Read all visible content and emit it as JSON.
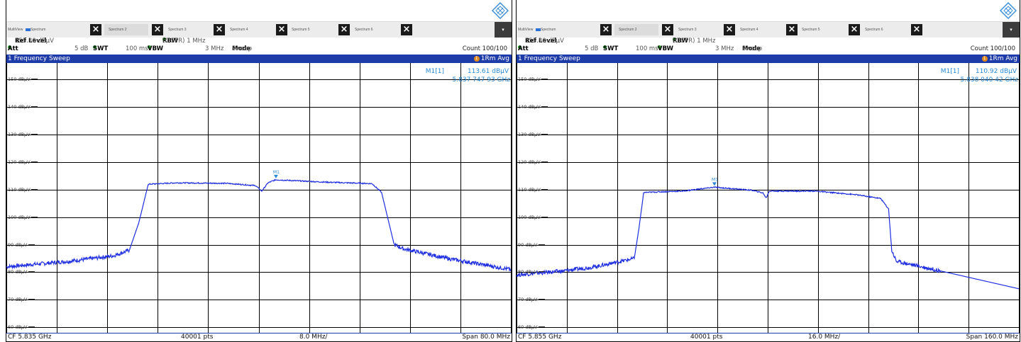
{
  "panels": [
    {
      "tabs": [
        "MultiView",
        "Spectrum",
        "Spectrum 2",
        "Spectrum 3",
        "Spectrum 4",
        "Spectrum 5",
        "Spectrum 6"
      ],
      "ref_level_label": "Ref Level",
      "ref_level_value": "155.30 dBµV",
      "rbw_label": "RBW",
      "rbw_value": "(CISPR) 1 MHz",
      "att_label": "Att",
      "att_value": "5 dB",
      "swt_label": "SWT",
      "swt_value": "100 ms",
      "vbw_label": "VBW",
      "vbw_value": "3 MHz",
      "mode_label": "Mode",
      "mode_value": "Sweep",
      "count": "Count 100/100",
      "sweep_title": "1 Frequency Sweep",
      "trace_mode_num": "1",
      "trace_mode": "1Rm Avg",
      "marker_name": "M1[1]",
      "marker_level": "113.61 dBµV",
      "marker_freq": "5.837 747 93 GHz",
      "marker_tag": "M1",
      "y_ticks": [
        "150 dBµV",
        "140 dBµV",
        "130 dBµV",
        "120 dBµV",
        "110 dBµV",
        "100 dBµV",
        "90 dBµV",
        "80 dBµV",
        "70 dBµV",
        "60 dBµV"
      ],
      "footer_cf": "CF 5.835 GHz",
      "footer_pts": "40001 pts",
      "footer_div": "8.0 MHz/",
      "footer_span": "Span 80.0 MHz"
    },
    {
      "tabs": [
        "MultiView",
        "Spectrum",
        "Spectrum 2",
        "Spectrum 3",
        "Spectrum 4",
        "Spectrum 5",
        "Spectrum 6"
      ],
      "ref_level_label": "Ref Level",
      "ref_level_value": "155.80 dBµV",
      "rbw_label": "RBW",
      "rbw_value": "(CISPR) 1 MHz",
      "att_label": "Att",
      "att_value": "5 dB",
      "swt_label": "SWT",
      "swt_value": "100 ms",
      "vbw_label": "VBW",
      "vbw_value": "3 MHz",
      "mode_label": "Mode",
      "mode_value": "Sweep",
      "count": "Count 100/100",
      "sweep_title": "1 Frequency Sweep",
      "trace_mode_num": "1",
      "trace_mode": "1Rm Avg",
      "marker_name": "M1[1]",
      "marker_level": "110.92 dBµV",
      "marker_freq": "5.838 040 42 GHz",
      "marker_tag": "M1",
      "y_ticks": [
        "150 dBµV",
        "140 dBµV",
        "130 dBµV",
        "120 dBµV",
        "110 dBµV",
        "100 dBµV",
        "90 dBµV",
        "80 dBµV",
        "70 dBµV",
        "60 dBµV"
      ],
      "footer_cf": "CF 5.855 GHz",
      "footer_pts": "40001 pts",
      "footer_div": "16.0 MHz/",
      "footer_span": "Span 160.0 MHz"
    }
  ],
  "chart_data": [
    {
      "type": "line",
      "title": "1 Frequency Sweep",
      "xlabel": "",
      "ylabel": "",
      "ylim": [
        58,
        155
      ],
      "xlim": [
        5.795,
        5.875
      ],
      "grid": true,
      "series": [
        {
          "x": [
            5.795,
            5.805,
            5.812,
            5.8145,
            5.816,
            5.8175,
            5.822,
            5.83,
            5.8345,
            5.8355,
            5.8365,
            5.8377,
            5.845,
            5.853,
            5.8545,
            5.8565,
            5.858,
            5.865,
            5.875
          ],
          "y": [
            82,
            84,
            86,
            88,
            98,
            112,
            112.5,
            112.3,
            111.5,
            109.5,
            112.5,
            113.6,
            112.8,
            112.2,
            109,
            90,
            88.5,
            85,
            81
          ]
        }
      ],
      "marker": {
        "x": 5.83774793,
        "y": 113.61
      }
    },
    {
      "type": "line",
      "title": "1 Frequency Sweep",
      "xlabel": "",
      "ylabel": "",
      "ylim": [
        58,
        155
      ],
      "xlim": [
        5.775,
        5.935
      ],
      "grid": true,
      "series": [
        {
          "x": [
            5.775,
            5.79,
            5.8,
            5.8125,
            5.814,
            5.8155,
            5.828,
            5.838,
            5.85,
            5.8535,
            5.8545,
            5.8555,
            5.87,
            5.883,
            5.891,
            5.8935,
            5.8945,
            5.896,
            5.91,
            5.935
          ],
          "y": [
            79,
            80.5,
            82,
            85,
            96,
            109,
            109.5,
            110.9,
            109.8,
            108.8,
            107,
            109.5,
            109.5,
            108.2,
            106.8,
            103,
            88,
            84,
            80.5,
            74
          ]
        }
      ],
      "marker": {
        "x": 5.83804042,
        "y": 110.92
      }
    }
  ],
  "colors": {
    "trace": "#1f2fe0",
    "header_bar": "#1e3ca8",
    "marker_text": "#2a8ad4",
    "grid": "#000000"
  },
  "icons": [
    "rs-logo-icon",
    "close-icon",
    "dropdown-icon"
  ]
}
